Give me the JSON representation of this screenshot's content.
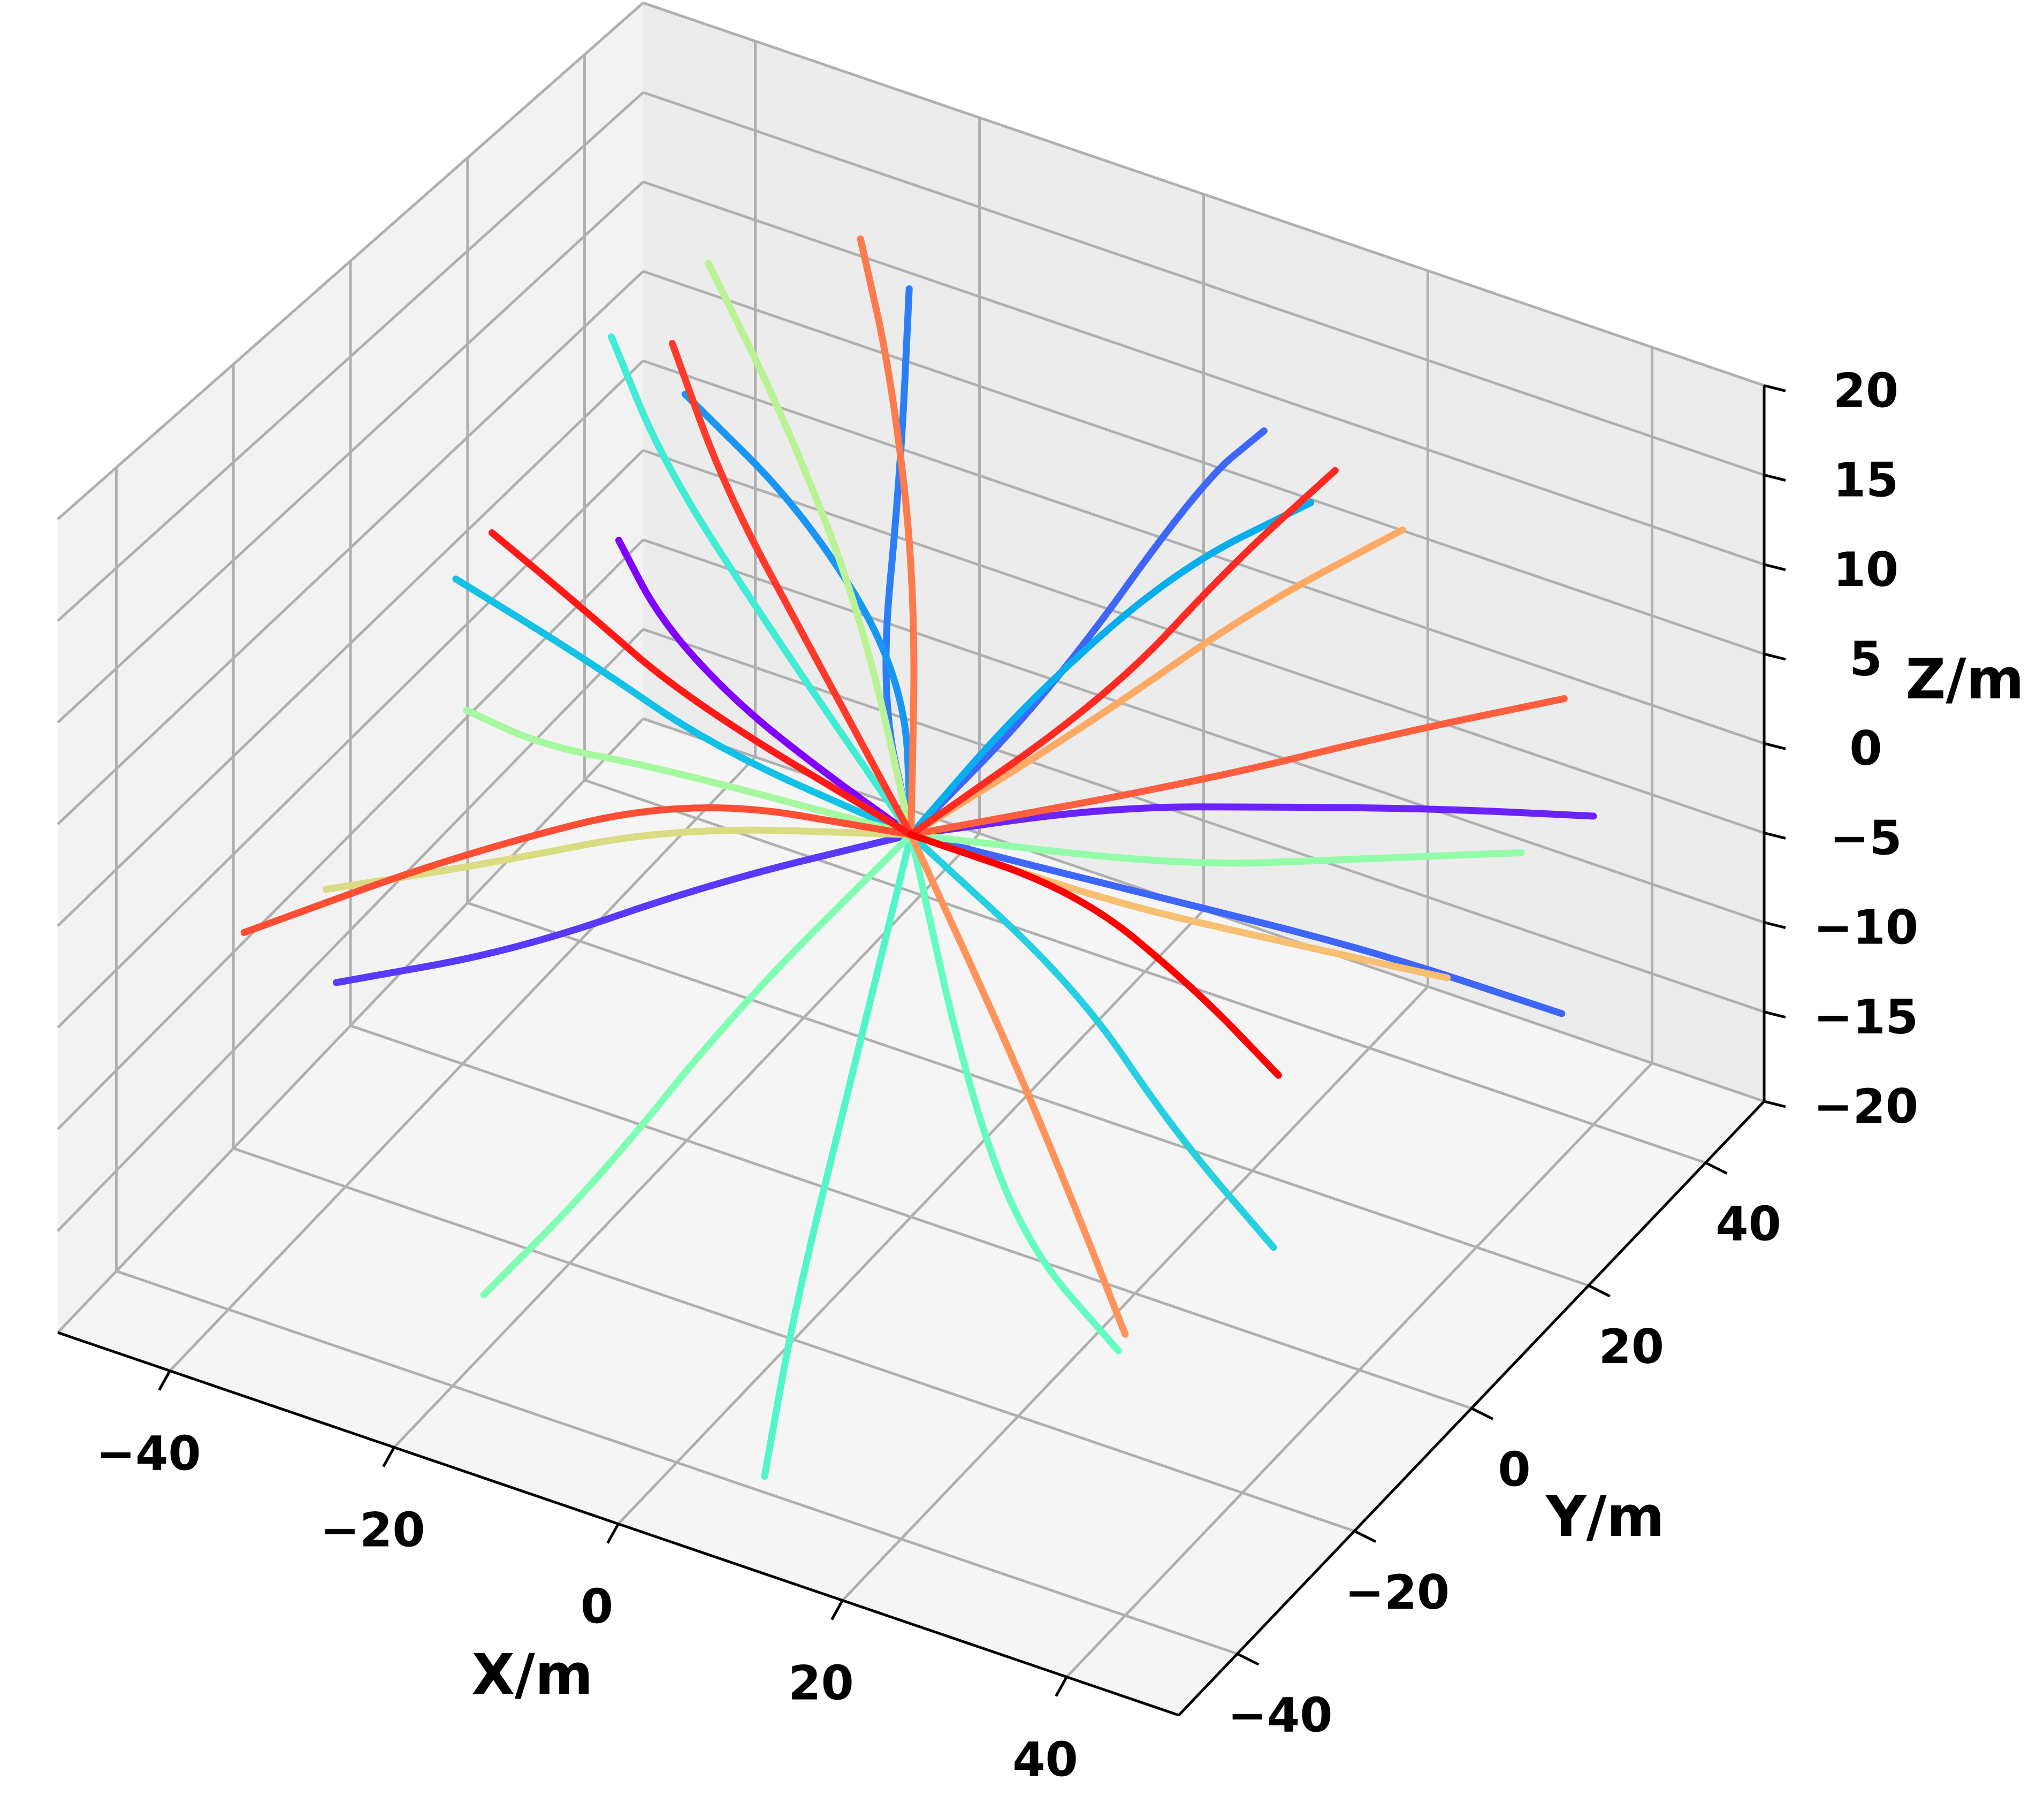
{
  "chart_data": {
    "type": "line3d",
    "title": "",
    "xlabel": "X/m",
    "ylabel": "Y/m",
    "zlabel": "Z/m",
    "xlim": [
      -50,
      50
    ],
    "ylim": [
      -50,
      50
    ],
    "zlim": [
      -20,
      20
    ],
    "xticks": [
      -40,
      -20,
      0,
      20,
      40
    ],
    "yticks": [
      -40,
      -20,
      0,
      20,
      40
    ],
    "zticks": [
      -20,
      -15,
      -10,
      -5,
      0,
      5,
      10,
      15,
      20
    ],
    "x_tick_labels": [
      "−40",
      "−20",
      "0",
      "20",
      "40"
    ],
    "y_tick_labels": [
      "−40",
      "−20",
      "0",
      "20",
      "40"
    ],
    "z_tick_labels": [
      "−20",
      "−15",
      "−10",
      "−5",
      "0",
      "5",
      "10",
      "15",
      "20"
    ],
    "grid": true,
    "colormap": "rainbow",
    "pane_color": "#f2f2f2",
    "series": [
      {
        "color": "#8000ff",
        "x": [
          0,
          -12,
          -25,
          -38,
          -48
        ],
        "y": [
          0,
          8,
          18,
          30,
          42
        ],
        "z": [
          0,
          -1.5,
          -3.5,
          -5.5,
          -7
        ]
      },
      {
        "color": "#6a23fe",
        "x": [
          0,
          10,
          20,
          30,
          40
        ],
        "y": [
          0,
          15,
          25,
          33,
          40
        ],
        "z": [
          0,
          -1,
          -2,
          -2.5,
          -3
        ]
      },
      {
        "color": "#5b38fd",
        "x": [
          0,
          -15,
          -30,
          -45
        ],
        "y": [
          0,
          -5,
          -10,
          -12
        ],
        "z": [
          0,
          -4,
          -9,
          -13
        ]
      },
      {
        "color": "#3f66fb",
        "x": [
          0,
          2,
          5,
          8
        ],
        "y": [
          0,
          20,
          40,
          45
        ],
        "z": [
          0,
          2,
          8,
          10
        ]
      },
      {
        "color": "#3f66fb",
        "x": [
          0,
          15,
          30,
          45
        ],
        "y": [
          0,
          10,
          20,
          25
        ],
        "z": [
          0,
          -3,
          -6,
          -8
        ]
      },
      {
        "color": "#2c7ef8",
        "x": [
          0,
          -8,
          -14,
          -20
        ],
        "y": [
          0,
          10,
          25,
          38
        ],
        "z": [
          0,
          3,
          9,
          14
        ]
      },
      {
        "color": "#1996f3",
        "x": [
          0,
          -10,
          -25,
          -40
        ],
        "y": [
          0,
          18,
          30,
          38
        ],
        "z": [
          0,
          1,
          3,
          4
        ]
      },
      {
        "color": "#06aeed",
        "x": [
          0,
          5,
          12,
          20
        ],
        "y": [
          0,
          10,
          22,
          30
        ],
        "z": [
          0,
          5,
          10,
          13
        ]
      },
      {
        "color": "#13c1e7",
        "x": [
          0,
          -20,
          -35,
          -50
        ],
        "y": [
          0,
          5,
          12,
          18
        ],
        "z": [
          0,
          -1,
          -1.5,
          -2
        ]
      },
      {
        "color": "#26d0e0",
        "x": [
          0,
          20,
          35,
          48
        ],
        "y": [
          0,
          -10,
          -22,
          -30
        ],
        "z": [
          0,
          -1,
          -2,
          -3
        ]
      },
      {
        "color": "#40ecd4",
        "x": [
          0,
          -20,
          -35,
          -45
        ],
        "y": [
          0,
          15,
          25,
          35
        ],
        "z": [
          0,
          2,
          5,
          7
        ]
      },
      {
        "color": "#53f5cb",
        "x": [
          0,
          5,
          8,
          12
        ],
        "y": [
          0,
          -20,
          -35,
          -48
        ],
        "z": [
          0,
          -6,
          -12,
          -16
        ]
      },
      {
        "color": "#66fbc2",
        "x": [
          0,
          18,
          30,
          42
        ],
        "y": [
          0,
          -25,
          -38,
          -45
        ],
        "z": [
          0,
          -2,
          -4,
          -5
        ]
      },
      {
        "color": "#80ffb4",
        "x": [
          0,
          -5,
          -8,
          -12
        ],
        "y": [
          0,
          -20,
          -38,
          -50
        ],
        "z": [
          0,
          -4,
          -8,
          -11
        ]
      },
      {
        "color": "#93fda9",
        "x": [
          0,
          20,
          32,
          44
        ],
        "y": [
          0,
          8,
          14,
          20
        ],
        "z": [
          0,
          0,
          1,
          2
        ]
      },
      {
        "color": "#a6f99f",
        "x": [
          0,
          -25,
          -38,
          -48
        ],
        "y": [
          0,
          5,
          10,
          16
        ],
        "z": [
          0,
          -3,
          -6,
          -8
        ]
      },
      {
        "color": "#b9f395",
        "x": [
          0,
          -15,
          -28,
          -40
        ],
        "y": [
          0,
          20,
          32,
          42
        ],
        "z": [
          0,
          3,
          7,
          10
        ]
      },
      {
        "color": "#d9dc82",
        "x": [
          0,
          -20,
          -35,
          -48
        ],
        "y": [
          0,
          -2,
          -5,
          -8
        ],
        "z": [
          0,
          -3,
          -7,
          -10
        ]
      },
      {
        "color": "#f6bf71",
        "x": [
          0,
          15,
          28,
          40
        ],
        "y": [
          0,
          5,
          10,
          15
        ],
        "z": [
          0,
          -2,
          -3,
          -4
        ]
      },
      {
        "color": "#ffa965",
        "x": [
          0,
          8,
          16,
          24
        ],
        "y": [
          0,
          15,
          28,
          38
        ],
        "z": [
          0,
          3,
          7,
          10
        ]
      },
      {
        "color": "#ff935a",
        "x": [
          0,
          18,
          30,
          40
        ],
        "y": [
          0,
          -18,
          -30,
          -40
        ],
        "z": [
          0,
          -2,
          -4,
          -6
        ]
      },
      {
        "color": "#ff7a4c",
        "x": [
          0,
          -10,
          -20,
          -28
        ],
        "y": [
          0,
          20,
          35,
          45
        ],
        "z": [
          0,
          5,
          10,
          13
        ]
      },
      {
        "color": "#ff5f3f",
        "x": [
          0,
          18,
          30,
          40
        ],
        "y": [
          0,
          15,
          25,
          35
        ],
        "z": [
          0,
          2,
          4,
          5
        ]
      },
      {
        "color": "#ff4e34",
        "x": [
          0,
          -20,
          -35,
          -48
        ],
        "y": [
          0,
          0,
          -10,
          -22
        ],
        "z": [
          0,
          -2,
          -5,
          -8
        ]
      },
      {
        "color": "#ff3a2b",
        "x": [
          0,
          -15,
          -28,
          -38
        ],
        "y": [
          0,
          12,
          22,
          32
        ],
        "z": [
          0,
          3,
          6,
          9
        ]
      },
      {
        "color": "#ff2a21",
        "x": [
          0,
          10,
          14,
          18
        ],
        "y": [
          0,
          15,
          28,
          38
        ],
        "z": [
          0,
          5,
          9,
          12
        ]
      },
      {
        "color": "#ff1a17",
        "x": [
          0,
          -25,
          -40,
          -52
        ],
        "y": [
          0,
          10,
          20,
          28
        ],
        "z": [
          0,
          -1,
          -2,
          -3
        ]
      },
      {
        "color": "#ff0000",
        "x": [
          0,
          15,
          28,
          38
        ],
        "y": [
          0,
          0,
          -5,
          -10
        ],
        "z": [
          0,
          0,
          -1,
          -2
        ]
      }
    ]
  }
}
